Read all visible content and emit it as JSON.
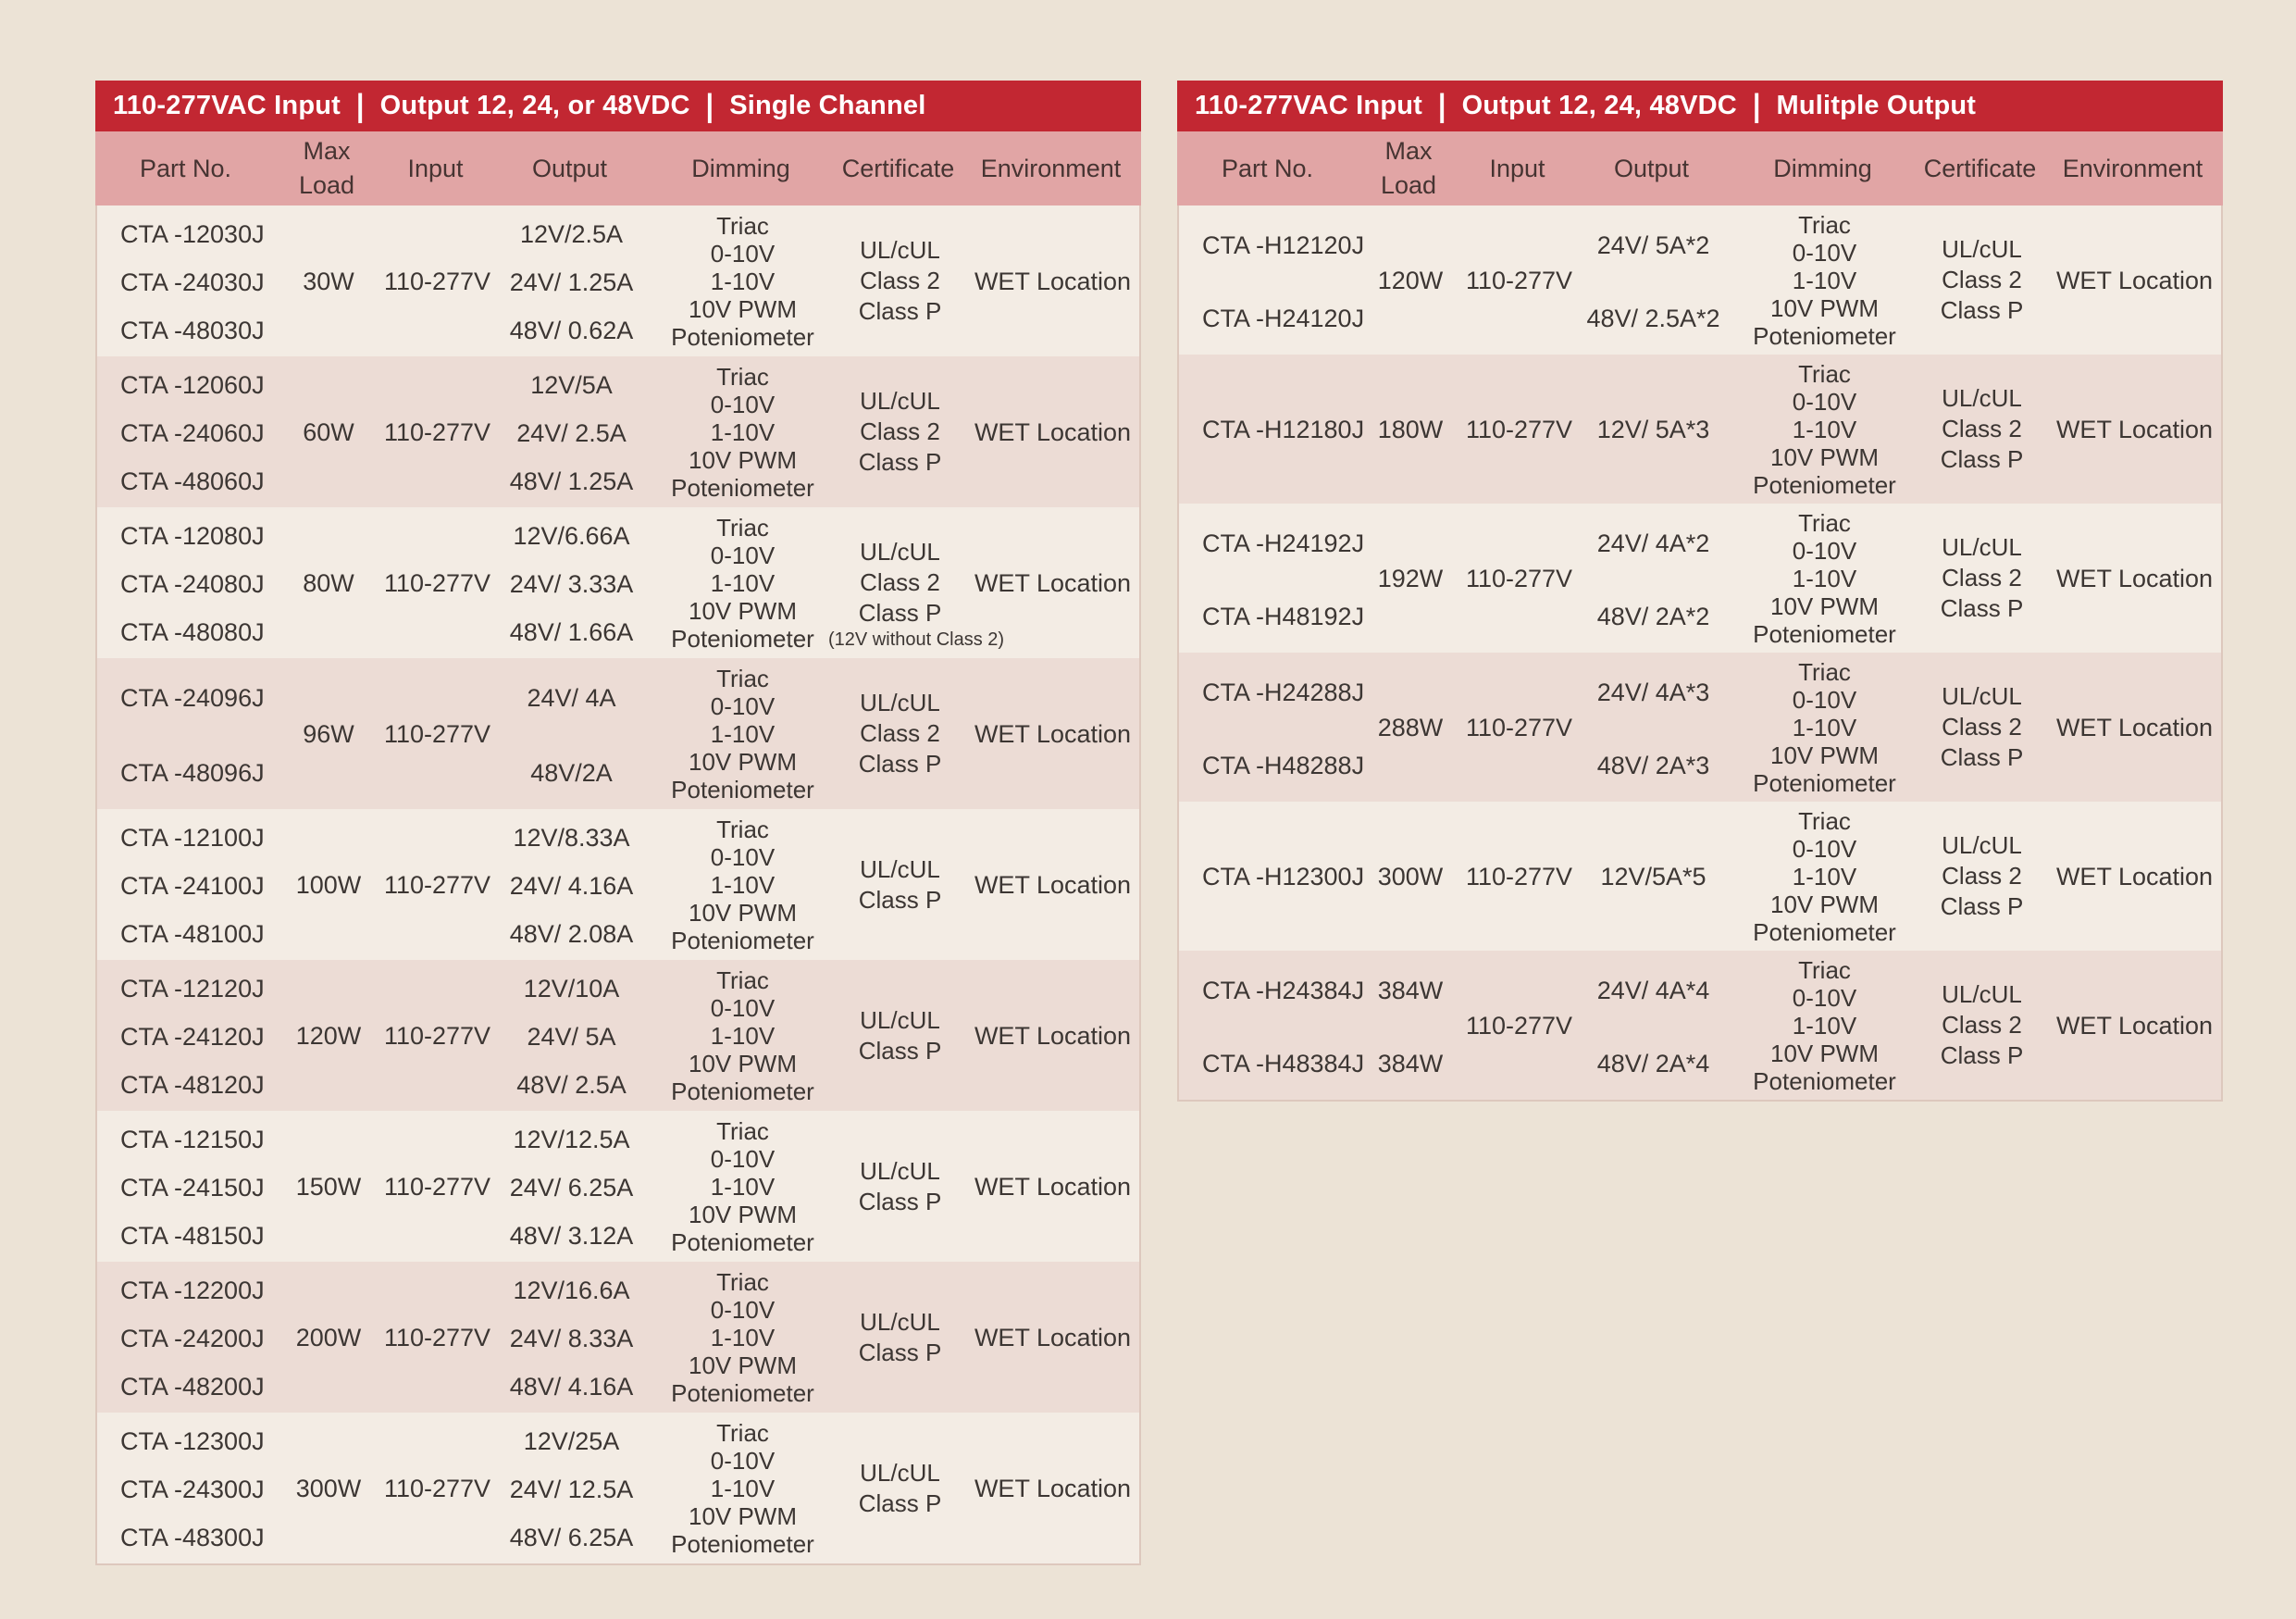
{
  "ui": {
    "title_separator": "|"
  },
  "colors": {
    "page_bg": "#ece3d6",
    "title_bg": "#c22732",
    "title_fg": "#ffffff",
    "header_bg": "#e1a5a5",
    "header_fg": "#463432",
    "row_light": "#f3ece4",
    "row_dark": "#ecdcd5",
    "text": "#3c3633",
    "body_border": "#ddc8bd"
  },
  "tables": [
    {
      "name": "single-channel",
      "title": [
        "110-277VAC Input",
        "Output 12, 24, or 48VDC",
        "Single Channel"
      ],
      "columns": [
        "Part No.",
        "Max Load",
        "Input",
        "Output",
        "Dimming",
        "Certificate",
        "Environment"
      ],
      "dimming": [
        "Triac",
        "0-10V",
        "1-10V",
        "10V PWM",
        "Poteniometer"
      ],
      "groups": [
        {
          "parts": [
            "CTA -12030J",
            "CTA -24030J",
            "CTA -48030J"
          ],
          "max_load": [
            "30W"
          ],
          "input": "110-277V",
          "outputs": [
            "12V/2.5A",
            "24V/ 1.25A",
            "48V/ 0.62A"
          ],
          "certificate": [
            "UL/cUL",
            "Class 2",
            "Class P"
          ],
          "environment": "WET Location"
        },
        {
          "parts": [
            "CTA -12060J",
            "CTA -24060J",
            "CTA -48060J"
          ],
          "max_load": [
            "60W"
          ],
          "input": "110-277V",
          "outputs": [
            "12V/5A",
            "24V/ 2.5A",
            "48V/ 1.25A"
          ],
          "certificate": [
            "UL/cUL",
            "Class 2",
            "Class P"
          ],
          "environment": "WET Location"
        },
        {
          "parts": [
            "CTA -12080J",
            "CTA -24080J",
            "CTA -48080J"
          ],
          "max_load": [
            "80W"
          ],
          "input": "110-277V",
          "outputs": [
            "12V/6.66A",
            "24V/ 3.33A",
            "48V/ 1.66A"
          ],
          "certificate": [
            "UL/cUL",
            "Class 2",
            "Class P"
          ],
          "certificate_note": "(12V without Class 2)",
          "environment": "WET Location"
        },
        {
          "parts": [
            "CTA -24096J",
            "CTA -48096J"
          ],
          "max_load": [
            "96W"
          ],
          "input": "110-277V",
          "outputs": [
            "24V/ 4A",
            "48V/2A"
          ],
          "certificate": [
            "UL/cUL",
            "Class 2",
            "Class P"
          ],
          "environment": "WET Location"
        },
        {
          "parts": [
            "CTA -12100J",
            "CTA -24100J",
            "CTA -48100J"
          ],
          "max_load": [
            "100W"
          ],
          "input": "110-277V",
          "outputs": [
            "12V/8.33A",
            "24V/ 4.16A",
            "48V/ 2.08A"
          ],
          "certificate": [
            "UL/cUL",
            "Class P"
          ],
          "environment": "WET Location"
        },
        {
          "parts": [
            "CTA -12120J",
            "CTA -24120J",
            "CTA -48120J"
          ],
          "max_load": [
            "120W"
          ],
          "input": "110-277V",
          "outputs": [
            "12V/10A",
            "24V/ 5A",
            "48V/ 2.5A"
          ],
          "certificate": [
            "UL/cUL",
            "Class P"
          ],
          "environment": "WET Location"
        },
        {
          "parts": [
            "CTA -12150J",
            "CTA -24150J",
            "CTA -48150J"
          ],
          "max_load": [
            "150W"
          ],
          "input": "110-277V",
          "outputs": [
            "12V/12.5A",
            "24V/ 6.25A",
            "48V/ 3.12A"
          ],
          "certificate": [
            "UL/cUL",
            "Class P"
          ],
          "environment": "WET Location"
        },
        {
          "parts": [
            "CTA -12200J",
            "CTA -24200J",
            "CTA -48200J"
          ],
          "max_load": [
            "200W"
          ],
          "input": "110-277V",
          "outputs": [
            "12V/16.6A",
            "24V/ 8.33A",
            "48V/ 4.16A"
          ],
          "certificate": [
            "UL/cUL",
            "Class P"
          ],
          "environment": "WET Location"
        },
        {
          "parts": [
            "CTA -12300J",
            "CTA -24300J",
            "CTA -48300J"
          ],
          "max_load": [
            "300W"
          ],
          "input": "110-277V",
          "outputs": [
            "12V/25A",
            "24V/ 12.5A",
            "48V/ 6.25A"
          ],
          "certificate": [
            "UL/cUL",
            "Class P"
          ],
          "environment": "WET Location"
        }
      ]
    },
    {
      "name": "multiple-output",
      "title": [
        "110-277VAC Input",
        "Output 12, 24, 48VDC",
        "Mulitple Output"
      ],
      "columns": [
        "Part No.",
        "Max Load",
        "Input",
        "Output",
        "Dimming",
        "Certificate",
        "Environment"
      ],
      "dimming": [
        "Triac",
        "0-10V",
        "1-10V",
        "10V PWM",
        "Poteniometer"
      ],
      "groups": [
        {
          "parts": [
            "CTA -H12120J",
            "CTA -H24120J"
          ],
          "max_load": [
            "120W"
          ],
          "input": "110-277V",
          "outputs": [
            "24V/ 5A*2",
            "48V/ 2.5A*2"
          ],
          "certificate": [
            "UL/cUL",
            "Class 2",
            "Class P"
          ],
          "environment": "WET Location"
        },
        {
          "parts": [
            "CTA -H12180J"
          ],
          "max_load": [
            "180W"
          ],
          "input": "110-277V",
          "outputs": [
            "12V/ 5A*3"
          ],
          "certificate": [
            "UL/cUL",
            "Class 2",
            "Class P"
          ],
          "environment": "WET Location"
        },
        {
          "parts": [
            "CTA -H24192J",
            "CTA -H48192J"
          ],
          "max_load": [
            "192W"
          ],
          "input": "110-277V",
          "outputs": [
            "24V/ 4A*2",
            "48V/ 2A*2"
          ],
          "certificate": [
            "UL/cUL",
            "Class 2",
            "Class P"
          ],
          "environment": "WET Location"
        },
        {
          "parts": [
            "CTA -H24288J",
            "CTA -H48288J"
          ],
          "max_load": [
            "288W"
          ],
          "input": "110-277V",
          "outputs": [
            "24V/ 4A*3",
            "48V/ 2A*3"
          ],
          "certificate": [
            "UL/cUL",
            "Class 2",
            "Class P"
          ],
          "environment": "WET Location"
        },
        {
          "parts": [
            "CTA -H12300J"
          ],
          "max_load": [
            "300W"
          ],
          "input": "110-277V",
          "outputs": [
            "12V/5A*5"
          ],
          "certificate": [
            "UL/cUL",
            "Class 2",
            "Class P"
          ],
          "environment": "WET Location"
        },
        {
          "parts": [
            "CTA -H24384J",
            "CTA -H48384J"
          ],
          "max_load": [
            "384W",
            "384W"
          ],
          "input": "110-277V",
          "outputs": [
            "24V/ 4A*4",
            "48V/ 2A*4"
          ],
          "certificate": [
            "UL/cUL",
            "Class 2",
            "Class P"
          ],
          "environment": "WET Location"
        }
      ]
    }
  ]
}
